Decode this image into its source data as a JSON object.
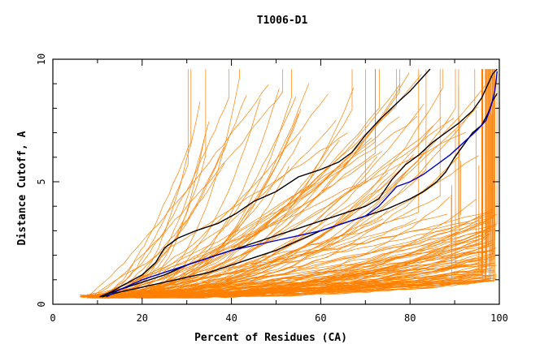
{
  "chart_data": {
    "type": "line",
    "title": "T1006-D1",
    "xlabel": "Percent of Residues (CA)",
    "ylabel": "Distance Cutoff, A",
    "xlim": [
      0,
      100
    ],
    "ylim": [
      0,
      10
    ],
    "x_ticks": [
      "0",
      "20",
      "40",
      "60",
      "80",
      "100"
    ],
    "y_ticks": [
      "0",
      "5",
      "10"
    ],
    "grid": false,
    "colors": {
      "background_models": "#ff8000",
      "highlight_black": "#000000",
      "highlight_blue": "#0000cc",
      "axes": "#000000"
    },
    "series": [
      {
        "color": "#000000",
        "points": [
          [
            10.5,
            0.3
          ],
          [
            13,
            0.5
          ],
          [
            16,
            0.8
          ],
          [
            20,
            1.2
          ],
          [
            23,
            1.7
          ],
          [
            25,
            2.3
          ],
          [
            28,
            2.7
          ],
          [
            32,
            3.0
          ],
          [
            37,
            3.3
          ],
          [
            41,
            3.7
          ],
          [
            45,
            4.2
          ],
          [
            50,
            4.6
          ],
          [
            55,
            5.2
          ],
          [
            60,
            5.5
          ],
          [
            64,
            5.8
          ],
          [
            67,
            6.2
          ],
          [
            70,
            6.9
          ],
          [
            73,
            7.5
          ],
          [
            77,
            8.2
          ],
          [
            80,
            8.7
          ],
          [
            83,
            9.3
          ],
          [
            84.5,
            9.6
          ]
        ]
      },
      {
        "color": "#000000",
        "points": [
          [
            10.5,
            0.3
          ],
          [
            15,
            0.6
          ],
          [
            20,
            0.9
          ],
          [
            25,
            1.2
          ],
          [
            30,
            1.6
          ],
          [
            35,
            1.9
          ],
          [
            40,
            2.2
          ],
          [
            45,
            2.5
          ],
          [
            50,
            2.8
          ],
          [
            55,
            3.1
          ],
          [
            60,
            3.4
          ],
          [
            65,
            3.7
          ],
          [
            70,
            4.0
          ],
          [
            73,
            4.3
          ],
          [
            76,
            5.1
          ],
          [
            79,
            5.7
          ],
          [
            82,
            6.1
          ],
          [
            85,
            6.6
          ],
          [
            88,
            7.0
          ],
          [
            91,
            7.4
          ],
          [
            94,
            7.9
          ],
          [
            96,
            8.4
          ],
          [
            97.5,
            9.0
          ],
          [
            98.5,
            9.4
          ],
          [
            99.5,
            9.6
          ]
        ]
      },
      {
        "color": "#000000",
        "points": [
          [
            11,
            0.3
          ],
          [
            15,
            0.5
          ],
          [
            20,
            0.7
          ],
          [
            25,
            0.9
          ],
          [
            30,
            1.1
          ],
          [
            35,
            1.3
          ],
          [
            40,
            1.6
          ],
          [
            45,
            1.9
          ],
          [
            50,
            2.2
          ],
          [
            55,
            2.6
          ],
          [
            60,
            3.0
          ],
          [
            65,
            3.3
          ],
          [
            70,
            3.6
          ],
          [
            75,
            3.9
          ],
          [
            80,
            4.3
          ],
          [
            83,
            4.6
          ],
          [
            86,
            5.0
          ],
          [
            88,
            5.4
          ],
          [
            90,
            6.0
          ],
          [
            92,
            6.5
          ],
          [
            94,
            7.0
          ],
          [
            96,
            7.3
          ],
          [
            97.5,
            7.8
          ],
          [
            98.5,
            8.3
          ],
          [
            99.5,
            8.6
          ]
        ]
      },
      {
        "color": "#0000cc",
        "points": [
          [
            12,
            0.3
          ],
          [
            15,
            0.6
          ],
          [
            20,
            1.0
          ],
          [
            25,
            1.3
          ],
          [
            30,
            1.6
          ],
          [
            35,
            1.9
          ],
          [
            40,
            2.2
          ],
          [
            45,
            2.4
          ],
          [
            50,
            2.6
          ],
          [
            55,
            2.8
          ],
          [
            60,
            3.0
          ],
          [
            65,
            3.3
          ],
          [
            70,
            3.6
          ],
          [
            73,
            4.0
          ],
          [
            75,
            4.4
          ],
          [
            77,
            4.8
          ],
          [
            80,
            5.0
          ],
          [
            83,
            5.3
          ],
          [
            86,
            5.7
          ],
          [
            89,
            6.1
          ],
          [
            92,
            6.6
          ],
          [
            95,
            7.1
          ],
          [
            97,
            7.5
          ],
          [
            98,
            8.0
          ],
          [
            99,
            8.7
          ],
          [
            99.5,
            9.5
          ]
        ]
      }
    ]
  }
}
